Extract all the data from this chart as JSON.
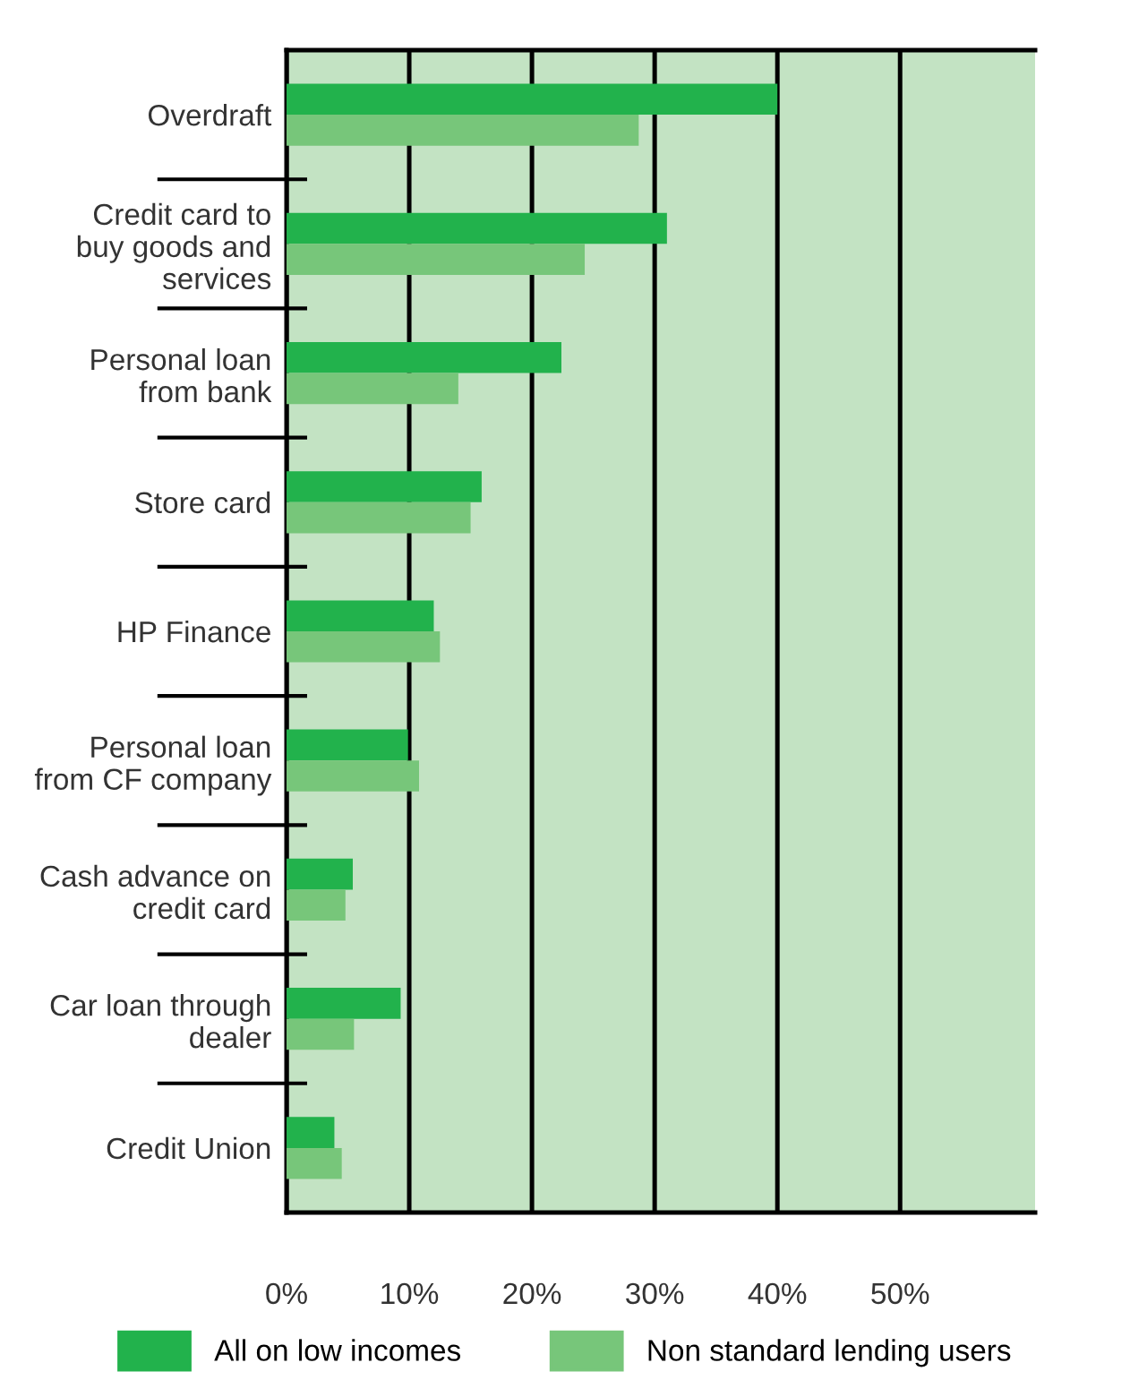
{
  "chart_data": {
    "type": "bar",
    "orientation": "horizontal",
    "categories": [
      "Overdraft",
      "Credit card to\nbuy goods and\nservices",
      "Personal loan\nfrom bank",
      "Store card",
      "HP Finance",
      "Personal loan\nfrom CF company",
      "Cash advance on\ncredit card",
      "Car loan through\ndealer",
      "Credit Union"
    ],
    "series": [
      {
        "name": "All on low incomes",
        "color": "#22b24c",
        "values": [
          40,
          31,
          22.4,
          15.9,
          12,
          9.9,
          5.4,
          9.3,
          3.9
        ]
      },
      {
        "name": "Non standard lending users",
        "color": "#77c67a",
        "values": [
          28.7,
          24.3,
          14,
          15,
          12.5,
          10.8,
          4.8,
          5.5,
          4.5
        ]
      }
    ],
    "xlim": [
      0,
      61
    ],
    "xticks": [
      {
        "value": 0,
        "label": "0%"
      },
      {
        "value": 10,
        "label": "10%"
      },
      {
        "value": 20,
        "label": "20%"
      },
      {
        "value": 30,
        "label": "30%"
      },
      {
        "value": 40,
        "label": "40%"
      },
      {
        "value": 50,
        "label": "50%"
      }
    ],
    "grid": "x",
    "legend": "bottom"
  }
}
